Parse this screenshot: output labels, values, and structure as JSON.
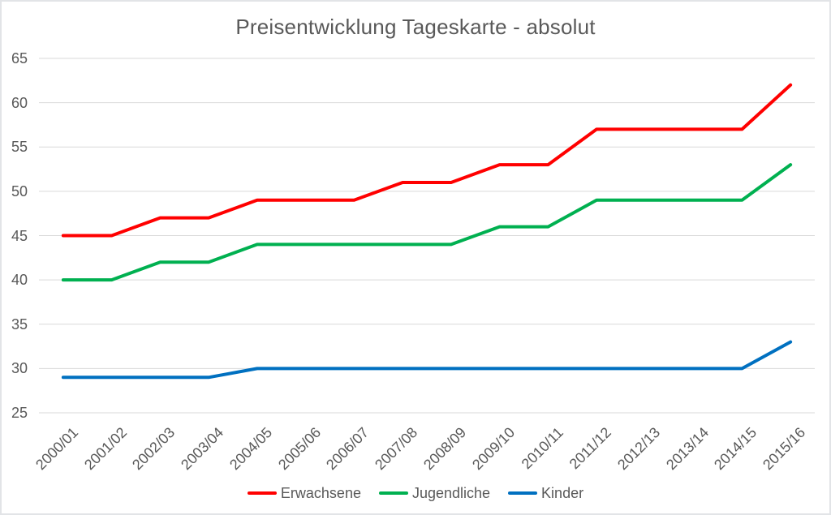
{
  "chart_data": {
    "type": "line",
    "title": "Preisentwicklung Tageskarte - absolut",
    "categories": [
      "2000/01",
      "2001/02",
      "2002/03",
      "2003/04",
      "2004/05",
      "2005/06",
      "2006/07",
      "2007/08",
      "2008/09",
      "2009/10",
      "2010/11",
      "2011/12",
      "2012/13",
      "2013/14",
      "2014/15",
      "2015/16"
    ],
    "series": [
      {
        "name": "Erwachsene",
        "color": "#ff0000",
        "values": [
          45,
          45,
          47,
          47,
          49,
          49,
          49,
          51,
          51,
          53,
          53,
          57,
          57,
          57,
          57,
          62
        ]
      },
      {
        "name": "Jugendliche",
        "color": "#00b050",
        "values": [
          40,
          40,
          42,
          42,
          44,
          44,
          44,
          44,
          44,
          46,
          46,
          49,
          49,
          49,
          49,
          53
        ]
      },
      {
        "name": "Kinder",
        "color": "#0070c0",
        "values": [
          29,
          29,
          29,
          29,
          30,
          30,
          30,
          30,
          30,
          30,
          30,
          30,
          30,
          30,
          30,
          33
        ]
      }
    ],
    "ylim": [
      25,
      65
    ],
    "yticks": [
      25,
      30,
      35,
      40,
      45,
      50,
      55,
      60,
      65
    ],
    "xlabel": "",
    "ylabel": "",
    "grid": true,
    "legend_position": "bottom",
    "line_width": 4,
    "gridline_color": "#d9d9d9",
    "text_color": "#595959"
  }
}
